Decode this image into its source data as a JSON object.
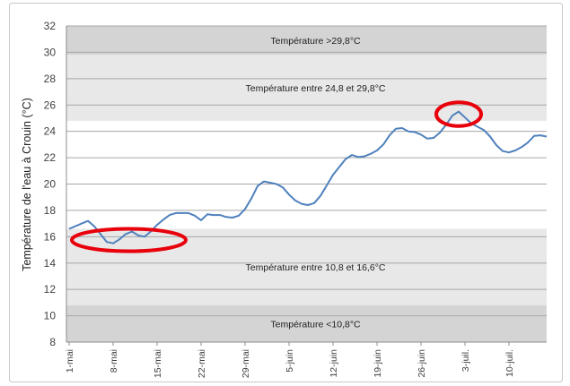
{
  "chart_data": {
    "type": "line",
    "title": "",
    "xlabel": "",
    "ylabel": "Température de l'eau à Crouin (°C)",
    "ylim": [
      8,
      32
    ],
    "yticks": [
      8,
      10,
      12,
      14,
      16,
      18,
      20,
      22,
      24,
      26,
      28,
      30,
      32
    ],
    "grid": true,
    "x_tick_labels": [
      "1-mai",
      "8-mai",
      "15-mai",
      "22-mai",
      "29-mai",
      "5-juin",
      "12-juin",
      "19-juin",
      "26-juin",
      "3-juil.",
      "10-juil."
    ],
    "x_start": "1-mai",
    "x_step_days": 1,
    "series": [
      {
        "name": "Température de l'eau à Crouin",
        "color": "#4f81bd",
        "values": [
          16.6,
          16.8,
          17.0,
          17.2,
          16.8,
          16.2,
          15.6,
          15.5,
          15.8,
          16.2,
          16.4,
          16.1,
          16.0,
          16.4,
          16.9,
          17.3,
          17.65,
          17.8,
          17.8,
          17.8,
          17.6,
          17.25,
          17.7,
          17.65,
          17.65,
          17.5,
          17.45,
          17.6,
          18.1,
          18.9,
          19.85,
          20.2,
          20.1,
          20.0,
          19.75,
          19.2,
          18.75,
          18.5,
          18.4,
          18.55,
          19.1,
          19.9,
          20.7,
          21.3,
          21.9,
          22.2,
          22.05,
          22.1,
          22.3,
          22.55,
          23.0,
          23.7,
          24.2,
          24.25,
          24.0,
          23.95,
          23.75,
          23.45,
          23.5,
          23.9,
          24.5,
          25.2,
          25.5,
          25.05,
          24.6,
          24.35,
          24.1,
          23.6,
          22.95,
          22.5,
          22.4,
          22.55,
          22.8,
          23.15,
          23.65,
          23.7,
          23.6
        ]
      }
    ],
    "bands": [
      {
        "label": "Température >29,8°C",
        "from": 29.8,
        "to": 32,
        "color": "#d4d4d4"
      },
      {
        "label": "Température entre 24,8 et 29,8°C",
        "from": 24.8,
        "to": 29.8,
        "color": "#e8e8e8"
      },
      {
        "label": "Température entre 10,8 et 16,6°C",
        "from": 10.8,
        "to": 16.6,
        "color": "#e8e8e8"
      },
      {
        "label": "Température <10,8°C",
        "from": 8,
        "to": 10.8,
        "color": "#d4d4d4"
      }
    ],
    "annotations": [
      {
        "type": "ellipse",
        "color": "#e8000b",
        "around_days": [
          1,
          18
        ],
        "around_values": [
          14.9,
          16.6
        ]
      },
      {
        "type": "ellipse",
        "color": "#e8000b",
        "around_days": [
          59,
          65
        ],
        "around_values": [
          24.4,
          26.2
        ]
      }
    ]
  }
}
